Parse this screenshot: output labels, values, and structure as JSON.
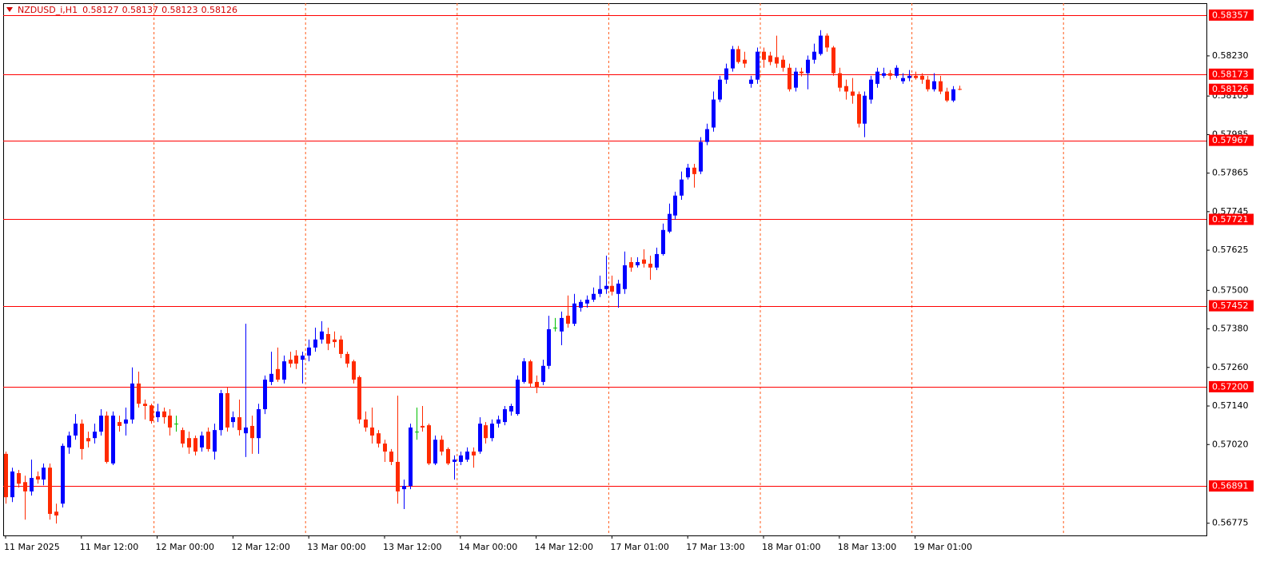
{
  "chart_data": {
    "type": "candlestick",
    "symbol": "NZDUSD_i,H1",
    "categories": [
      "11 Mar 2025",
      null,
      null,
      null,
      null,
      null,
      null,
      null,
      null,
      null,
      null,
      null,
      "11 Mar 12:00",
      null,
      null,
      null,
      null,
      null,
      null,
      null,
      null,
      null,
      null,
      null,
      "12 Mar 00:00",
      null,
      null,
      null,
      null,
      null,
      null,
      null,
      null,
      null,
      null,
      null,
      "12 Mar 12:00",
      null,
      null,
      null,
      null,
      null,
      null,
      null,
      null,
      null,
      null,
      null,
      "13 Mar 00:00",
      null,
      null,
      null,
      null,
      null,
      null,
      null,
      null,
      null,
      null,
      null,
      "13 Mar 12:00",
      null,
      null,
      null,
      null,
      null,
      null,
      null,
      null,
      null,
      null,
      null,
      "14 Mar 00:00",
      null,
      null,
      null,
      null,
      null,
      null,
      null,
      null,
      null,
      null,
      null,
      "14 Mar 12:00",
      null,
      null,
      null,
      null,
      null,
      null,
      null,
      null,
      null,
      null,
      null,
      "17 Mar 01:00",
      null,
      null,
      null,
      null,
      null,
      null,
      null,
      null,
      null,
      null,
      null,
      "17 Mar 13:00",
      null,
      null,
      null,
      null,
      null,
      null,
      null,
      null,
      null,
      null,
      null,
      "18 Mar 01:00",
      null,
      null,
      null,
      null,
      null,
      null,
      null,
      null,
      null,
      null,
      null,
      "18 Mar 13:00",
      null,
      null,
      null,
      null,
      null,
      null,
      null,
      null,
      null,
      null,
      null,
      "19 Mar 01:00",
      null,
      null,
      null,
      null,
      null,
      null,
      null
    ],
    "candles": [
      [
        0.56991,
        0.56998,
        0.56836,
        0.56856
      ],
      [
        0.56856,
        0.56948,
        0.56841,
        0.56936
      ],
      [
        0.56931,
        0.56941,
        0.56886,
        0.56898
      ],
      [
        0.56903,
        0.56923,
        0.56786,
        0.56874
      ],
      [
        0.56874,
        0.56973,
        0.56861,
        0.56916
      ],
      [
        0.56921,
        0.56936,
        0.56898,
        0.56911
      ],
      [
        0.56911,
        0.56961,
        0.56893,
        0.56948
      ],
      [
        0.56948,
        0.56961,
        0.56786,
        0.56804
      ],
      [
        0.56811,
        0.56836,
        0.56774,
        0.56799
      ],
      [
        0.56836,
        0.57023,
        0.56824,
        0.57016
      ],
      [
        0.57011,
        0.5706,
        0.56991,
        0.57048
      ],
      [
        0.57048,
        0.57115,
        0.57035,
        0.57085
      ],
      [
        0.57085,
        0.57098,
        0.56973,
        0.57006
      ],
      [
        0.5704,
        0.5706,
        0.57011,
        0.5703
      ],
      [
        0.5704,
        0.57085,
        0.57023,
        0.5706
      ],
      [
        0.5706,
        0.5713,
        0.57048,
        0.5711
      ],
      [
        0.5711,
        0.57123,
        0.56961,
        0.56966
      ],
      [
        0.56961,
        0.57123,
        0.56956,
        0.5711
      ],
      [
        0.5709,
        0.5711,
        0.5706,
        0.57078
      ],
      [
        0.57085,
        0.57135,
        0.57048,
        0.57098
      ],
      [
        0.57098,
        0.5726,
        0.57085,
        0.5721
      ],
      [
        0.5721,
        0.57247,
        0.57135,
        0.57147
      ],
      [
        0.57147,
        0.5716,
        0.57098,
        0.5714
      ],
      [
        0.57142,
        0.57147,
        0.57085,
        0.57093
      ],
      [
        0.57105,
        0.57147,
        0.5709,
        0.57123
      ],
      [
        0.57123,
        0.57135,
        0.57085,
        0.57105
      ],
      [
        0.5711,
        0.5713,
        0.57048,
        0.57073
      ],
      [
        0.57085,
        0.5711,
        0.5706,
        0.57085
      ],
      [
        0.57065,
        0.57073,
        0.57011,
        0.57023
      ],
      [
        0.5704,
        0.5706,
        0.56991,
        0.57011
      ],
      [
        0.5704,
        0.57048,
        0.56986,
        0.56998
      ],
      [
        0.57011,
        0.5706,
        0.56998,
        0.57048
      ],
      [
        0.5706,
        0.57073,
        0.56998,
        0.57006
      ],
      [
        0.56998,
        0.57085,
        0.56973,
        0.57065
      ],
      [
        0.57065,
        0.5719,
        0.57048,
        0.5718
      ],
      [
        0.5718,
        0.57197,
        0.5706,
        0.57073
      ],
      [
        0.5709,
        0.57123,
        0.57073,
        0.57105
      ],
      [
        0.57105,
        0.5716,
        0.57048,
        0.57065
      ],
      [
        0.57055,
        0.57396,
        0.56981,
        0.57073
      ],
      [
        0.57078,
        0.5711,
        0.56991,
        0.5704
      ],
      [
        0.5704,
        0.57147,
        0.56991,
        0.5713
      ],
      [
        0.5713,
        0.57235,
        0.57115,
        0.57222
      ],
      [
        0.57215,
        0.57309,
        0.57205,
        0.5724
      ],
      [
        0.57255,
        0.57322,
        0.57215,
        0.57222
      ],
      [
        0.57222,
        0.57297,
        0.5721,
        0.57279
      ],
      [
        0.57284,
        0.57309,
        0.5726,
        0.57272
      ],
      [
        0.57297,
        0.57314,
        0.57255,
        0.57272
      ],
      [
        0.57284,
        0.57309,
        0.5721,
        0.57297
      ],
      [
        0.57297,
        0.57347,
        0.57279,
        0.57322
      ],
      [
        0.57322,
        0.57384,
        0.57309,
        0.57347
      ],
      [
        0.57347,
        0.57404,
        0.57334,
        0.57372
      ],
      [
        0.57364,
        0.57384,
        0.57314,
        0.57334
      ],
      [
        0.57347,
        0.57372,
        0.57322,
        0.57339
      ],
      [
        0.57347,
        0.57359,
        0.57289,
        0.57302
      ],
      [
        0.57302,
        0.57309,
        0.5726,
        0.57272
      ],
      [
        0.57279,
        0.57284,
        0.5721,
        0.57222
      ],
      [
        0.5723,
        0.57235,
        0.57085,
        0.57098
      ],
      [
        0.57098,
        0.57123,
        0.5706,
        0.57073
      ],
      [
        0.57073,
        0.57135,
        0.57023,
        0.57048
      ],
      [
        0.57055,
        0.57065,
        0.57011,
        0.57023
      ],
      [
        0.57023,
        0.57035,
        0.56966,
        0.56998
      ],
      [
        0.56998,
        0.57006,
        0.56956,
        0.56966
      ],
      [
        0.56966,
        0.57172,
        0.56836,
        0.56874
      ],
      [
        0.56881,
        0.56911,
        0.56819,
        0.56891
      ],
      [
        0.56891,
        0.57085,
        0.56881,
        0.57073
      ],
      [
        0.5706,
        0.57135,
        0.57035,
        0.5706
      ],
      [
        0.57078,
        0.5714,
        0.5706,
        0.57073
      ],
      [
        0.5708,
        0.57085,
        0.56956,
        0.56961
      ],
      [
        0.56961,
        0.57048,
        0.56956,
        0.57035
      ],
      [
        0.57035,
        0.57048,
        0.56986,
        0.56998
      ],
      [
        0.57006,
        0.57011,
        0.56956,
        0.56961
      ],
      [
        0.56966,
        0.56986,
        0.56911,
        0.56973
      ],
      [
        0.56966,
        0.56998,
        0.56956,
        0.56986
      ],
      [
        0.56973,
        0.57011,
        0.56966,
        0.56998
      ],
      [
        0.56998,
        0.57011,
        0.56948,
        0.56986
      ],
      [
        0.56998,
        0.57105,
        0.56991,
        0.57085
      ],
      [
        0.5708,
        0.5709,
        0.57023,
        0.5704
      ],
      [
        0.5704,
        0.57098,
        0.5703,
        0.57085
      ],
      [
        0.57085,
        0.5711,
        0.57073,
        0.57098
      ],
      [
        0.5709,
        0.5714,
        0.5708,
        0.5713
      ],
      [
        0.57123,
        0.57147,
        0.5711,
        0.5714
      ],
      [
        0.57115,
        0.57235,
        0.5711,
        0.57222
      ],
      [
        0.57215,
        0.57289,
        0.5721,
        0.57279
      ],
      [
        0.57279,
        0.57284,
        0.57197,
        0.5721
      ],
      [
        0.57215,
        0.57235,
        0.5718,
        0.57197
      ],
      [
        0.57215,
        0.57284,
        0.57205,
        0.57265
      ],
      [
        0.57265,
        0.57421,
        0.57255,
        0.57379
      ],
      [
        0.57384,
        0.57414,
        0.57372,
        0.57384
      ],
      [
        0.57372,
        0.57434,
        0.57329,
        0.57414
      ],
      [
        0.57421,
        0.57484,
        0.57384,
        0.57396
      ],
      [
        0.57396,
        0.57489,
        0.57389,
        0.57459
      ],
      [
        0.57446,
        0.57471,
        0.57434,
        0.57464
      ],
      [
        0.57459,
        0.57484,
        0.57446,
        0.57471
      ],
      [
        0.57471,
        0.57509,
        0.57464,
        0.57489
      ],
      [
        0.57489,
        0.57546,
        0.57479,
        0.57504
      ],
      [
        0.57504,
        0.57608,
        0.57489,
        0.57514
      ],
      [
        0.57514,
        0.57546,
        0.57484,
        0.57496
      ],
      [
        0.57489,
        0.57533,
        0.57446,
        0.57521
      ],
      [
        0.57504,
        0.57621,
        0.57489,
        0.57578
      ],
      [
        0.57588,
        0.57603,
        0.57558,
        0.57571
      ],
      [
        0.57578,
        0.57603,
        0.57571,
        0.57588
      ],
      [
        0.57596,
        0.57628,
        0.57571,
        0.57583
      ],
      [
        0.57583,
        0.57608,
        0.57533,
        0.57571
      ],
      [
        0.57571,
        0.57633,
        0.57563,
        0.57613
      ],
      [
        0.57613,
        0.57708,
        0.57608,
        0.57688
      ],
      [
        0.57683,
        0.5777,
        0.57678,
        0.57738
      ],
      [
        0.57733,
        0.57807,
        0.5772,
        0.57795
      ],
      [
        0.57795,
        0.5787,
        0.57782,
        0.57845
      ],
      [
        0.57852,
        0.57894,
        0.57845,
        0.57882
      ],
      [
        0.57882,
        0.57894,
        0.5782,
        0.57862
      ],
      [
        0.5787,
        0.57977,
        0.57862,
        0.57962
      ],
      [
        0.57962,
        0.58019,
        0.57952,
        0.58002
      ],
      [
        0.58007,
        0.58119,
        0.57994,
        0.58094
      ],
      [
        0.58094,
        0.58168,
        0.58086,
        0.58156
      ],
      [
        0.58156,
        0.58206,
        0.58143,
        0.58191
      ],
      [
        0.58191,
        0.58261,
        0.58181,
        0.58251
      ],
      [
        0.58251,
        0.58261,
        0.58206,
        0.58211
      ],
      [
        0.58218,
        0.58243,
        0.58193,
        0.58206
      ],
      [
        0.58143,
        0.58168,
        0.58131,
        0.58156
      ],
      [
        0.58156,
        0.58256,
        0.58143,
        0.58243
      ],
      [
        0.58243,
        0.58256,
        0.58193,
        0.58218
      ],
      [
        0.58231,
        0.58243,
        0.58201,
        0.58211
      ],
      [
        0.58226,
        0.58293,
        0.58193,
        0.58206
      ],
      [
        0.58218,
        0.58231,
        0.58181,
        0.58193
      ],
      [
        0.58193,
        0.58206,
        0.58119,
        0.58126
      ],
      [
        0.58131,
        0.58193,
        0.58119,
        0.58181
      ],
      [
        0.58181,
        0.58193,
        0.58166,
        0.58176
      ],
      [
        0.58176,
        0.58231,
        0.58126,
        0.58218
      ],
      [
        0.58218,
        0.58268,
        0.58206,
        0.58243
      ],
      [
        0.58236,
        0.5831,
        0.58231,
        0.58293
      ],
      [
        0.58293,
        0.583,
        0.58243,
        0.58256
      ],
      [
        0.58256,
        0.58261,
        0.58168,
        0.58176
      ],
      [
        0.58176,
        0.58193,
        0.58119,
        0.58131
      ],
      [
        0.58136,
        0.58156,
        0.58094,
        0.58119
      ],
      [
        0.58119,
        0.58161,
        0.58081,
        0.58106
      ],
      [
        0.58111,
        0.58119,
        0.58007,
        0.58019
      ],
      [
        0.58019,
        0.58119,
        0.57977,
        0.58106
      ],
      [
        0.58094,
        0.58168,
        0.58081,
        0.58156
      ],
      [
        0.58143,
        0.58193,
        0.58131,
        0.58181
      ],
      [
        0.58168,
        0.58193,
        0.58161,
        0.58176
      ],
      [
        0.58176,
        0.58186,
        0.58156,
        0.58168
      ],
      [
        0.58168,
        0.58201,
        0.58161,
        0.58193
      ],
      [
        0.58151,
        0.58176,
        0.58143,
        0.58161
      ],
      [
        0.58161,
        0.58186,
        0.58151,
        0.58168
      ],
      [
        0.58168,
        0.58181,
        0.58156,
        0.58161
      ],
      [
        0.58168,
        0.58176,
        0.58143,
        0.58156
      ],
      [
        0.58156,
        0.58168,
        0.58119,
        0.58126
      ],
      [
        0.58126,
        0.58176,
        0.58119,
        0.58151
      ],
      [
        0.58151,
        0.58168,
        0.58111,
        0.58119
      ],
      [
        0.58119,
        0.58131,
        0.58086,
        0.58091
      ],
      [
        0.58091,
        0.58136,
        0.58086,
        0.58126
      ],
      [
        0.58127,
        0.58137,
        0.58123,
        0.58126
      ]
    ],
    "colors": {
      "up": "#0000ff",
      "down": "#ff2a00",
      "doji": "#00c000",
      "level": "#ff0000",
      "grid": "#ff5a1a"
    },
    "levels": [
      0.58357,
      0.58173,
      0.57967,
      0.57721,
      0.57452,
      {
        "value": 0.572,
        "label": "0.57200"
      },
      0.56891
    ],
    "ylim": [
      0.56737,
      0.58394
    ],
    "yticks": [
      {
        "value": 0.5823,
        "label": "0.58230"
      },
      0.58105,
      0.57985,
      0.57865,
      0.57745,
      0.57625,
      {
        "value": 0.575,
        "label": "0.57500"
      },
      {
        "value": 0.5738,
        "label": "0.57380"
      },
      {
        "value": 0.5726,
        "label": "0.57260"
      },
      {
        "value": 0.5714,
        "label": "0.57140"
      },
      {
        "value": 0.5702,
        "label": "0.57020"
      },
      0.56775
    ],
    "grid": true
  }
}
